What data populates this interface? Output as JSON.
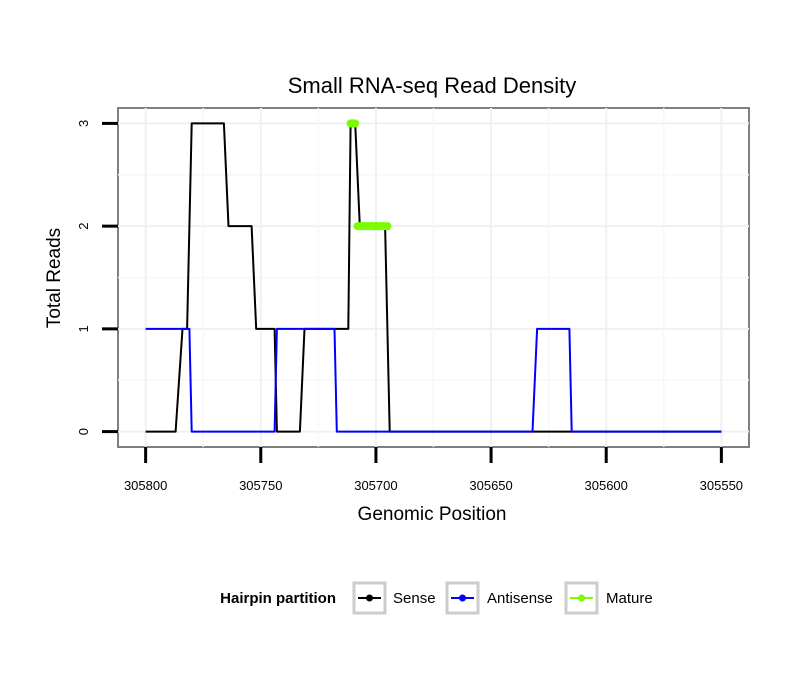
{
  "chart_data": {
    "type": "line",
    "title": "Small RNA-seq Read Density",
    "xlabel": "Genomic Position",
    "ylabel": "Total Reads",
    "x_reversed": true,
    "xlim": [
      305812,
      305538
    ],
    "ylim": [
      -0.15,
      3.15
    ],
    "x_ticks": [
      305800,
      305750,
      305700,
      305650,
      305600,
      305550
    ],
    "x_tick_labels": [
      "305800",
      "305750",
      "305700",
      "305650",
      "305600",
      "305550"
    ],
    "y_ticks": [
      0,
      1,
      2,
      3
    ],
    "y_tick_labels": [
      "0",
      "1",
      "2",
      "3"
    ],
    "grid": true,
    "legend": {
      "title": "Hairpin partition",
      "position": "bottom"
    },
    "series": [
      {
        "name": "Sense",
        "color": "#000000",
        "style": "line",
        "points": [
          [
            305800,
            0
          ],
          [
            305787,
            0
          ],
          [
            305784,
            1
          ],
          [
            305782,
            1
          ],
          [
            305780,
            3
          ],
          [
            305766,
            3
          ],
          [
            305764,
            2
          ],
          [
            305754,
            2
          ],
          [
            305752,
            1
          ],
          [
            305744,
            1
          ],
          [
            305743,
            0
          ],
          [
            305733,
            0
          ],
          [
            305731,
            1
          ],
          [
            305712,
            1
          ],
          [
            305711,
            3
          ],
          [
            305709,
            3
          ],
          [
            305707,
            2
          ],
          [
            305696,
            2
          ],
          [
            305694,
            0
          ],
          [
            305550,
            0
          ]
        ]
      },
      {
        "name": "Antisense",
        "color": "#0000ff",
        "style": "line",
        "points": [
          [
            305800,
            1
          ],
          [
            305781,
            1
          ],
          [
            305780,
            0
          ],
          [
            305744,
            0
          ],
          [
            305743,
            1
          ],
          [
            305718,
            1
          ],
          [
            305717,
            0
          ],
          [
            305632,
            0
          ],
          [
            305630,
            1
          ],
          [
            305616,
            1
          ],
          [
            305615,
            0
          ],
          [
            305550,
            0
          ]
        ]
      },
      {
        "name": "Mature",
        "color": "#7cfc00",
        "style": "thick-segments",
        "segments": [
          [
            [
              305711,
              3
            ],
            [
              305709,
              3
            ]
          ],
          [
            [
              305708,
              2
            ],
            [
              305695,
              2
            ]
          ]
        ]
      }
    ]
  }
}
